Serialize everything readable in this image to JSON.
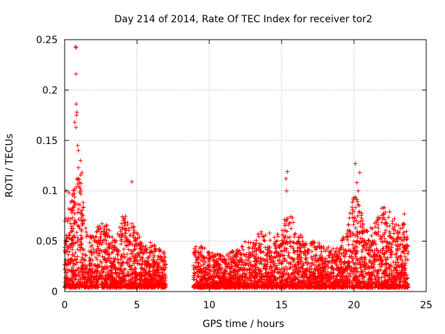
{
  "chart_data": {
    "type": "scatter",
    "title": "Day 214 of 2014, Rate Of TEC Index for receiver tor2",
    "xlabel": "GPS time / hours",
    "ylabel": "ROTI / TECUs",
    "xlim": [
      0,
      25
    ],
    "ylim": [
      0,
      0.25
    ],
    "x_ticks": [
      0,
      5,
      10,
      15,
      20,
      25
    ],
    "y_ticks": [
      0,
      0.05,
      0.1,
      0.15,
      0.2,
      0.25
    ],
    "x_tick_labels": [
      "0",
      "5",
      "10",
      "15",
      "20",
      "25"
    ],
    "y_tick_labels": [
      "0",
      "0.05",
      "0.1",
      "0.15",
      "0.2",
      "0.25"
    ],
    "grid": true,
    "marker": "plus",
    "color": "#ff0000",
    "data_gap_hours": [
      7.0,
      8.9
    ],
    "notable_points": [
      {
        "x": 0.75,
        "y": 0.243
      },
      {
        "x": 0.8,
        "y": 0.242
      },
      {
        "x": 0.78,
        "y": 0.216
      },
      {
        "x": 0.8,
        "y": 0.186
      },
      {
        "x": 0.85,
        "y": 0.178
      },
      {
        "x": 0.82,
        "y": 0.175
      },
      {
        "x": 0.7,
        "y": 0.168
      },
      {
        "x": 0.78,
        "y": 0.163
      },
      {
        "x": 0.9,
        "y": 0.145
      },
      {
        "x": 0.95,
        "y": 0.14
      },
      {
        "x": 1.1,
        "y": 0.13
      },
      {
        "x": 1.2,
        "y": 0.118
      },
      {
        "x": 4.65,
        "y": 0.109
      },
      {
        "x": 15.4,
        "y": 0.119
      },
      {
        "x": 15.3,
        "y": 0.112
      },
      {
        "x": 15.35,
        "y": 0.1
      },
      {
        "x": 20.1,
        "y": 0.127
      },
      {
        "x": 20.4,
        "y": 0.118
      },
      {
        "x": 20.2,
        "y": 0.108
      },
      {
        "x": 20.3,
        "y": 0.1
      },
      {
        "x": 0.1,
        "y": 0.1
      },
      {
        "x": 0.3,
        "y": 0.098
      }
    ],
    "envelope": [
      {
        "x": 0.0,
        "y": 0.07
      },
      {
        "x": 0.5,
        "y": 0.095
      },
      {
        "x": 1.0,
        "y": 0.13
      },
      {
        "x": 1.5,
        "y": 0.06
      },
      {
        "x": 2.0,
        "y": 0.055
      },
      {
        "x": 2.5,
        "y": 0.075
      },
      {
        "x": 3.0,
        "y": 0.065
      },
      {
        "x": 3.5,
        "y": 0.05
      },
      {
        "x": 4.0,
        "y": 0.075
      },
      {
        "x": 4.5,
        "y": 0.075
      },
      {
        "x": 5.0,
        "y": 0.06
      },
      {
        "x": 5.5,
        "y": 0.045
      },
      {
        "x": 6.0,
        "y": 0.05
      },
      {
        "x": 6.5,
        "y": 0.045
      },
      {
        "x": 6.9,
        "y": 0.04
      },
      {
        "x": 9.0,
        "y": 0.045
      },
      {
        "x": 9.5,
        "y": 0.045
      },
      {
        "x": 10.0,
        "y": 0.04
      },
      {
        "x": 10.5,
        "y": 0.04
      },
      {
        "x": 11.0,
        "y": 0.035
      },
      {
        "x": 11.5,
        "y": 0.04
      },
      {
        "x": 12.0,
        "y": 0.045
      },
      {
        "x": 12.5,
        "y": 0.05
      },
      {
        "x": 13.0,
        "y": 0.05
      },
      {
        "x": 13.5,
        "y": 0.06
      },
      {
        "x": 14.0,
        "y": 0.06
      },
      {
        "x": 14.5,
        "y": 0.055
      },
      {
        "x": 15.0,
        "y": 0.06
      },
      {
        "x": 15.5,
        "y": 0.09
      },
      {
        "x": 16.0,
        "y": 0.06
      },
      {
        "x": 16.5,
        "y": 0.055
      },
      {
        "x": 17.0,
        "y": 0.05
      },
      {
        "x": 17.5,
        "y": 0.05
      },
      {
        "x": 18.0,
        "y": 0.045
      },
      {
        "x": 18.5,
        "y": 0.045
      },
      {
        "x": 19.0,
        "y": 0.05
      },
      {
        "x": 19.5,
        "y": 0.06
      },
      {
        "x": 20.0,
        "y": 0.1
      },
      {
        "x": 20.5,
        "y": 0.08
      },
      {
        "x": 21.0,
        "y": 0.06
      },
      {
        "x": 21.5,
        "y": 0.07
      },
      {
        "x": 22.0,
        "y": 0.085
      },
      {
        "x": 22.5,
        "y": 0.08
      },
      {
        "x": 23.0,
        "y": 0.07
      },
      {
        "x": 23.5,
        "y": 0.08
      },
      {
        "x": 23.75,
        "y": 0.05
      }
    ]
  }
}
